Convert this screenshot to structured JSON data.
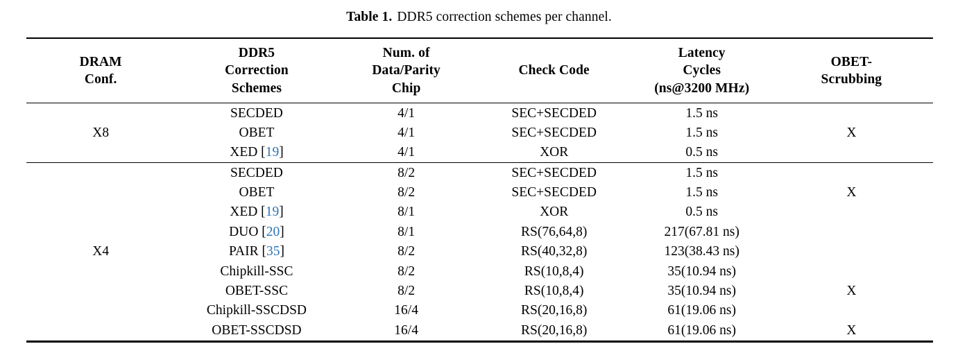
{
  "caption": {
    "label": "Table 1.",
    "text": "DDR5 correction schemes per channel."
  },
  "colors": {
    "citation": "#2E74B5",
    "text": "#000000",
    "rule": "#000000"
  },
  "table": {
    "headers": [
      "DRAM\nConf.",
      "DDR5\nCorrection\nSchemes",
      "Num. of\nData/Parity\nChip",
      "Check Code",
      "Latency\nCycles\n(ns@3200 MHz)",
      "OBET-\nScrubbing"
    ],
    "groups": [
      {
        "dram_conf": "X8",
        "rows": [
          {
            "scheme": "SECDED",
            "cite": null,
            "chips": "4/1",
            "check_code": "SEC+SECDED",
            "latency": "1.5 ns",
            "obet_scrubbing": ""
          },
          {
            "scheme": "OBET",
            "cite": null,
            "chips": "4/1",
            "check_code": "SEC+SECDED",
            "latency": "1.5 ns",
            "obet_scrubbing": "X"
          },
          {
            "scheme": "XED",
            "cite": "19",
            "chips": "4/1",
            "check_code": "XOR",
            "latency": "0.5 ns",
            "obet_scrubbing": ""
          }
        ]
      },
      {
        "dram_conf": "X4",
        "rows": [
          {
            "scheme": "SECDED",
            "cite": null,
            "chips": "8/2",
            "check_code": "SEC+SECDED",
            "latency": "1.5 ns",
            "obet_scrubbing": ""
          },
          {
            "scheme": "OBET",
            "cite": null,
            "chips": "8/2",
            "check_code": "SEC+SECDED",
            "latency": "1.5 ns",
            "obet_scrubbing": "X"
          },
          {
            "scheme": "XED",
            "cite": "19",
            "chips": "8/1",
            "check_code": "XOR",
            "latency": "0.5 ns",
            "obet_scrubbing": ""
          },
          {
            "scheme": "DUO",
            "cite": "20",
            "chips": "8/1",
            "check_code": "RS(76,64,8)",
            "latency": "217(67.81 ns)",
            "obet_scrubbing": ""
          },
          {
            "scheme": "PAIR",
            "cite": "35",
            "chips": "8/2",
            "check_code": "RS(40,32,8)",
            "latency": "123(38.43 ns)",
            "obet_scrubbing": ""
          },
          {
            "scheme": "Chipkill-SSC",
            "cite": null,
            "chips": "8/2",
            "check_code": "RS(10,8,4)",
            "latency": "35(10.94 ns)",
            "obet_scrubbing": ""
          },
          {
            "scheme": "OBET-SSC",
            "cite": null,
            "chips": "8/2",
            "check_code": "RS(10,8,4)",
            "latency": "35(10.94 ns)",
            "obet_scrubbing": "X"
          },
          {
            "scheme": "Chipkill-SSCDSD",
            "cite": null,
            "chips": "16/4",
            "check_code": "RS(20,16,8)",
            "latency": "61(19.06 ns)",
            "obet_scrubbing": ""
          },
          {
            "scheme": "OBET-SSCDSD",
            "cite": null,
            "chips": "16/4",
            "check_code": "RS(20,16,8)",
            "latency": "61(19.06 ns)",
            "obet_scrubbing": "X"
          }
        ]
      }
    ]
  }
}
